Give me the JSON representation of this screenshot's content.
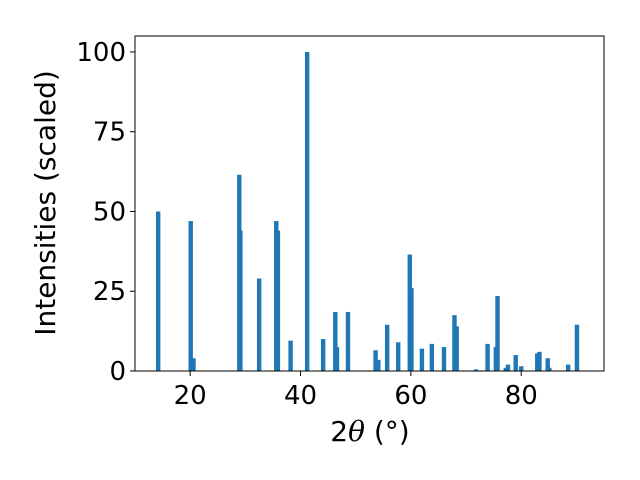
{
  "chart_data": {
    "type": "bar",
    "title": "",
    "xlabel_prefix": "2",
    "xlabel_symbol": "θ",
    "xlabel_suffix": " (°)",
    "ylabel": "Intensities (scaled)",
    "xlim": [
      10,
      95
    ],
    "ylim": [
      0,
      105
    ],
    "xticks": [
      20,
      40,
      60,
      80
    ],
    "yticks": [
      0,
      25,
      50,
      75,
      100
    ],
    "grid": false,
    "bar_color": "#1f77b4",
    "x": [
      14.2,
      20.1,
      20.6,
      28.9,
      29.1,
      32.5,
      35.6,
      35.9,
      38.2,
      41.2,
      44.1,
      46.3,
      46.6,
      48.6,
      53.6,
      54.1,
      55.7,
      57.7,
      59.8,
      60.1,
      62.0,
      63.8,
      66.0,
      67.9,
      68.3,
      71.8,
      73.9,
      75.4,
      75.7,
      77.2,
      77.6,
      79.0,
      80.0,
      82.9,
      83.3,
      84.8,
      85.1,
      88.5,
      90.1
    ],
    "values": [
      50,
      47,
      4,
      61.5,
      44,
      29,
      47,
      44,
      9.5,
      100,
      10,
      18.5,
      7.5,
      18.5,
      6.5,
      3.5,
      14.5,
      9,
      36.5,
      26,
      7,
      8.5,
      7.5,
      17.5,
      14,
      0.5,
      8.5,
      7.5,
      23.5,
      1,
      2,
      5,
      1.5,
      5.5,
      6,
      4,
      1,
      2,
      14.5
    ]
  }
}
